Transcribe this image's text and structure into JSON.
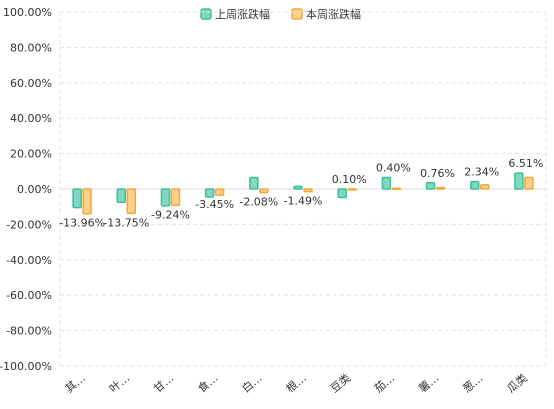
{
  "chart_data": {
    "type": "bar",
    "categories": [
      "其…",
      "叶…",
      "甘…",
      "食…",
      "白…",
      "根…",
      "豆类",
      "茄…",
      "薯…",
      "葱…",
      "瓜类"
    ],
    "series": [
      {
        "name": "上周涨跌幅",
        "color_fill": "#7fd9c0",
        "color_stroke": "#3fbf9a",
        "values": [
          -10.5,
          -7.5,
          -9.5,
          -4.5,
          6.5,
          1.5,
          -4.8,
          6.5,
          3.5,
          4.2,
          9.0
        ]
      },
      {
        "name": "本周涨跌幅",
        "color_fill": "#ffd08a",
        "color_stroke": "#f2a73a",
        "values": [
          -13.96,
          -13.75,
          -9.24,
          -3.45,
          -2.08,
          -1.49,
          0.1,
          0.4,
          0.76,
          2.34,
          6.51
        ]
      }
    ],
    "data_labels": [
      "-13.96%",
      "-13.75%",
      "-9.24%",
      "-3.45%",
      "-2.08%",
      "-1.49%",
      "0.10%",
      "0.40%",
      "0.76%",
      "2.34%",
      "6.51%"
    ],
    "y_ticks": [
      "100.00%",
      "80.00%",
      "60.00%",
      "40.00%",
      "20.00%",
      "0.00%",
      "-20.00%",
      "-40.00%",
      "-60.00%",
      "-80.00%",
      "-100.00%"
    ],
    "ylim": [
      -100,
      100
    ],
    "grid": true,
    "legend_position": "top-center"
  }
}
